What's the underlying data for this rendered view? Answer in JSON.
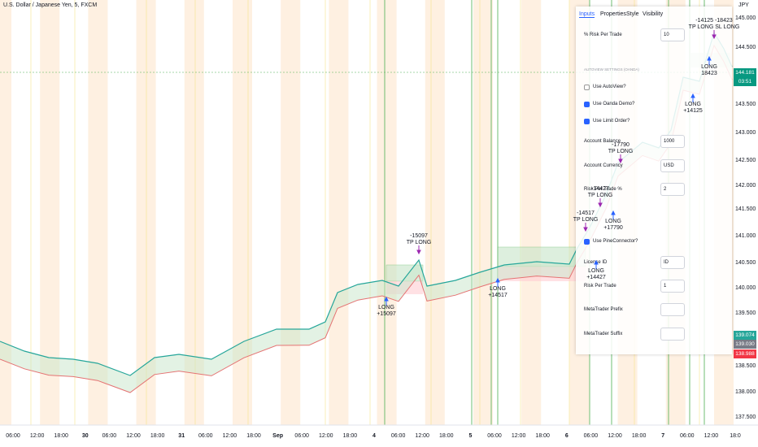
{
  "header": {
    "symbol": "U.S. Dollar / Japanese Yen, 5, FXCM",
    "currency": "JPY"
  },
  "price_axis": [
    "145.000",
    "144.500",
    "143.500",
    "143.000",
    "142.500",
    "142.000",
    "141.500",
    "141.000",
    "140.500",
    "140.000",
    "139.500",
    "138.500",
    "138.000",
    "137.500"
  ],
  "price_badges": [
    "144.181",
    "03:51",
    "139.074",
    "139.030",
    "138.988"
  ],
  "time_axis": [
    "06:00",
    "12:00",
    "18:00",
    "30",
    "06:00",
    "12:00",
    "18:00",
    "31",
    "06:00",
    "12:00",
    "18:00",
    "Sep",
    "06:00",
    "12:00",
    "18:00",
    "4",
    "06:00",
    "12:00",
    "18:00",
    "5",
    "06:00",
    "12:00",
    "18:00",
    "6",
    "06:00",
    "12:00",
    "18:00",
    "7",
    "06:00",
    "12:00",
    "18:0"
  ],
  "annotations": [
    {
      "lines": [
        "LONG",
        "+15097"
      ]
    },
    {
      "lines": [
        "-15097",
        "TP LONG"
      ]
    },
    {
      "lines": [
        "LONG",
        "+14517"
      ]
    },
    {
      "lines": [
        "-14517",
        "TP LONG"
      ]
    },
    {
      "lines": [
        "-14427",
        "TP LONG"
      ]
    },
    {
      "lines": [
        "LONG",
        "+14427"
      ]
    },
    {
      "lines": [
        "LONG",
        "+17790"
      ]
    },
    {
      "lines": [
        "-17790",
        "TP LONG"
      ]
    },
    {
      "lines": [
        "LONG",
        "+14125"
      ]
    },
    {
      "lines": [
        "-14125 -18423",
        "TP LONG SL LONG"
      ]
    },
    {
      "lines": [
        "LONG",
        "18423"
      ]
    }
  ],
  "settings": {
    "tabs": [
      "Inputs",
      "Properties",
      "Style",
      "Visibility"
    ],
    "rows": [
      {
        "label": "% Risk Per Trade",
        "value": "10"
      },
      {
        "section": "AUTOVIEW SETTINGS (OANDA)"
      },
      {
        "label": "Use AutoView?",
        "checked": false
      },
      {
        "label": "Use Oanda Demo?",
        "checked": true
      },
      {
        "label": "Use Limit Order?",
        "checked": true
      },
      {
        "label": "Account Balance",
        "value": "1000"
      },
      {
        "label": "Account Currency",
        "value": "USD"
      },
      {
        "label": "Risk Per Trade %",
        "value": "2"
      },
      {
        "label": "Use PineConnector?",
        "checked": true
      },
      {
        "label": "License ID",
        "value": "ID"
      },
      {
        "label": "Risk Per Trade",
        "value": "1"
      },
      {
        "label": "MetaTrader Prefix"
      },
      {
        "label": "MetaTrader Suffix"
      }
    ]
  }
}
